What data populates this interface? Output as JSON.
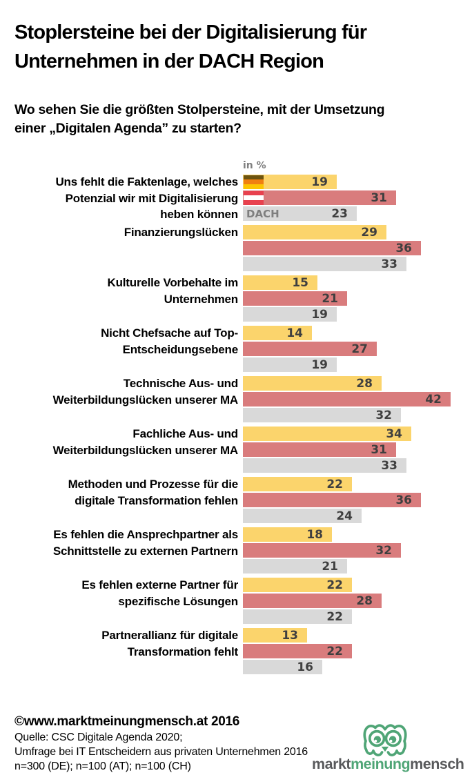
{
  "title": "Stoplersteine bei der Digitalisierung für\nUnternehmen in der DACH Region",
  "subtitle": "Wo sehen Sie die größten Stolpersteine, mit der Umsetzung\neiner „Digitalen Agenda” zu starten?",
  "chart_data": {
    "type": "bar",
    "orientation": "horizontal",
    "unit_label": "in %",
    "xlim": [
      0,
      42
    ],
    "grid": false,
    "legend_position": "inline-first-group",
    "categories": [
      "Uns fehlt die Faktenlage, welches\nPotenzial wir mit Digitalisierung\nheben können",
      "Finanzierungslücken",
      "Kulturelle Vorbehalte im\nUnternehmen",
      "Nicht Chefsache auf Top-\nEntscheidungsebene",
      "Technische Aus- und\nWeiterbildungslücken unserer MA",
      "Fachliche Aus- und\nWeiterbildungslücken unserer MA",
      "Methoden und Prozesse für die\ndigitale Transformation fehlen",
      "Es fehlen die Ansprechpartner als\nSchnittstelle zu externen Partnern",
      "Es fehlen externe Partner für\nspezifische Lösungen",
      "Partnerallianz für digitale\nTransformation fehlt"
    ],
    "series": [
      {
        "id": "DE",
        "legend_icon": "german-flag",
        "color": "#FBD46C",
        "values": [
          19,
          29,
          15,
          14,
          28,
          34,
          22,
          18,
          22,
          13
        ]
      },
      {
        "id": "AT",
        "legend_icon": "austrian-flag",
        "color": "#D97C7D",
        "values": [
          31,
          36,
          21,
          27,
          42,
          31,
          36,
          32,
          28,
          22
        ]
      },
      {
        "id": "DACH",
        "legend_label": "DACH",
        "color": "#D9D9D9",
        "values": [
          23,
          33,
          19,
          19,
          32,
          33,
          24,
          21,
          22,
          16
        ]
      }
    ]
  },
  "colors": {
    "value_label": "#3F3F3F",
    "german_flag": [
      "#6D5410",
      "#F08011",
      "#FCC503"
    ],
    "austrian_flag": [
      "#E8414E",
      "#FFFFFF",
      "#E8414E"
    ],
    "logo_green": "#4FA576",
    "logo_gray": "#58595B"
  },
  "footer": {
    "copyright": "©www.marktmeinungmensch.at 2016",
    "source_line1": "Quelle: CSC Digitale Agenda 2020;",
    "source_line2": "Umfrage bei IT Entscheidern aus privaten Unternehmen 2016",
    "source_line3": "n=300 (DE); n=100 (AT); n=100 (CH)"
  },
  "logo": {
    "part1": "markt",
    "part2": "meinung",
    "part3": "mensch"
  }
}
